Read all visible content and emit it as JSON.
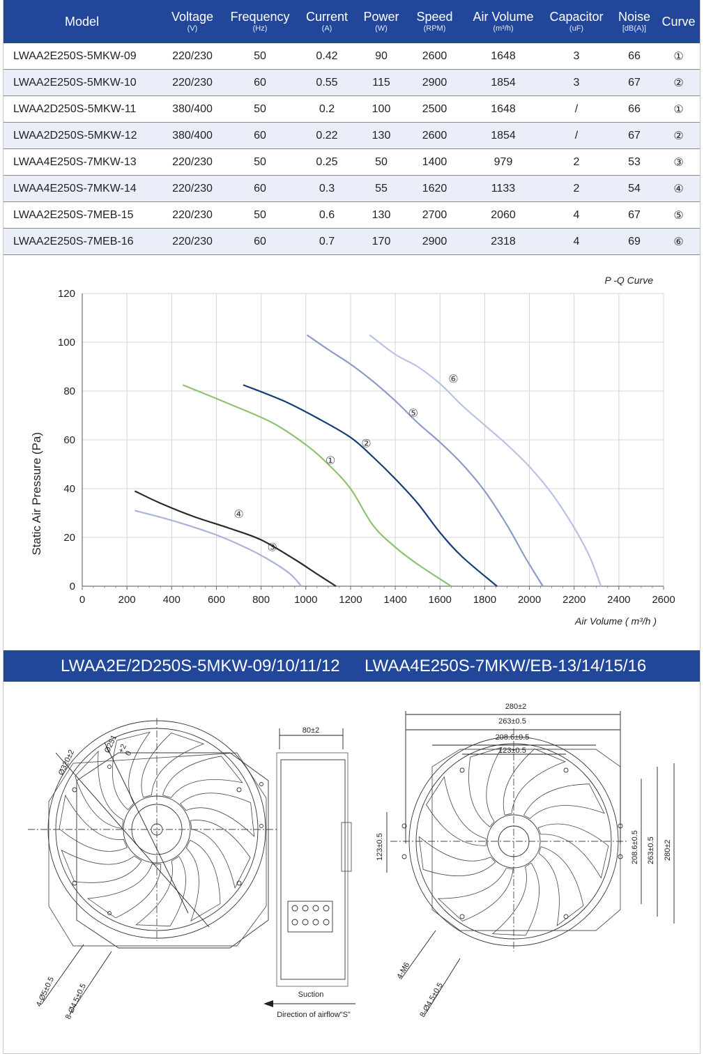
{
  "table": {
    "headers": [
      {
        "title": "Model",
        "unit": ""
      },
      {
        "title": "Voltage",
        "unit": "(V)"
      },
      {
        "title": "Frequency",
        "unit": "(Hz)"
      },
      {
        "title": "Current",
        "unit": "(A)"
      },
      {
        "title": "Power",
        "unit": "(W)"
      },
      {
        "title": "Speed",
        "unit": "(RPM)"
      },
      {
        "title": "Air Volume",
        "unit": "(m³/h)"
      },
      {
        "title": "Capacitor",
        "unit": "(uF)"
      },
      {
        "title": "Noise",
        "unit": "[dB(A)]"
      },
      {
        "title": "Curve",
        "unit": ""
      }
    ],
    "rows": [
      [
        "LWAA2E250S-5MKW-09",
        "220/230",
        "50",
        "0.42",
        "90",
        "2600",
        "1648",
        "3",
        "66",
        "①"
      ],
      [
        "LWAA2E250S-5MKW-10",
        "220/230",
        "60",
        "0.55",
        "115",
        "2900",
        "1854",
        "3",
        "67",
        "②"
      ],
      [
        "LWAA2D250S-5MKW-11",
        "380/400",
        "50",
        "0.2",
        "100",
        "2500",
        "1648",
        "/",
        "66",
        "①"
      ],
      [
        "LWAA2D250S-5MKW-12",
        "380/400",
        "60",
        "0.22",
        "130",
        "2600",
        "1854",
        "/",
        "67",
        "②"
      ],
      [
        "LWAA4E250S-7MKW-13",
        "220/230",
        "50",
        "0.25",
        "50",
        "1400",
        "979",
        "2",
        "53",
        "③"
      ],
      [
        "LWAA4E250S-7MKW-14",
        "220/230",
        "60",
        "0.3",
        "55",
        "1620",
        "1133",
        "2",
        "54",
        "④"
      ],
      [
        "LWAA2E250S-7MEB-15",
        "220/230",
        "50",
        "0.6",
        "130",
        "2700",
        "2060",
        "4",
        "67",
        "⑤"
      ],
      [
        "LWAA2E250S-7MEB-16",
        "220/230",
        "60",
        "0.7",
        "170",
        "2900",
        "2318",
        "4",
        "69",
        "⑥"
      ]
    ]
  },
  "chart_data": {
    "type": "line",
    "title": "P -Q Curve",
    "xlabel": "Air Volume ( m³/h )",
    "ylabel": "Static Air Pressure  (Pa)",
    "xlim": [
      0,
      2600
    ],
    "ylim": [
      0,
      120
    ],
    "xticks": [
      0,
      200,
      400,
      600,
      800,
      1000,
      1200,
      1400,
      1600,
      1800,
      2000,
      2200,
      2400,
      2600
    ],
    "yticks": [
      0,
      20,
      40,
      60,
      80,
      100,
      120
    ],
    "grid": true,
    "series": [
      {
        "name": "①",
        "color": "#8fc16f",
        "label_at": [
          1110,
          50
        ],
        "x": [
          450,
          650,
          850,
          1000,
          1100,
          1200,
          1300,
          1400,
          1500,
          1650
        ],
        "y": [
          82.5,
          75,
          67,
          58,
          50,
          40,
          25,
          16,
          9,
          0
        ]
      },
      {
        "name": "②",
        "color": "#153b7a",
        "label_at": [
          1270,
          57
        ],
        "x": [
          720,
          900,
          1050,
          1200,
          1300,
          1400,
          1500,
          1600,
          1700,
          1855
        ],
        "y": [
          82.5,
          76,
          69,
          61,
          53,
          44,
          34,
          22,
          12,
          0
        ]
      },
      {
        "name": "③",
        "color": "#aab4d8",
        "label_at": [
          850,
          14.5
        ],
        "x": [
          235,
          400,
          600,
          750,
          850,
          930,
          980
        ],
        "y": [
          31,
          27,
          21,
          15,
          10,
          5,
          0
        ]
      },
      {
        "name": "④",
        "color": "#2a2a2a",
        "label_at": [
          700,
          28
        ],
        "x": [
          235,
          350,
          500,
          650,
          800,
          950,
          1050,
          1135
        ],
        "y": [
          39,
          34,
          28.5,
          24,
          19,
          11,
          5,
          0
        ]
      },
      {
        "name": "⑤",
        "color": "#8a9cc6",
        "label_at": [
          1480,
          69.5
        ],
        "x": [
          1005,
          1100,
          1200,
          1300,
          1400,
          1500,
          1600,
          1700,
          1800,
          1900,
          1980,
          2060
        ],
        "y": [
          103,
          97,
          91,
          84,
          76,
          67,
          59,
          50,
          39,
          25,
          12,
          0
        ]
      },
      {
        "name": "⑥",
        "color": "#b8c2e2",
        "label_at": [
          1660,
          83.5
        ],
        "x": [
          1285,
          1400,
          1500,
          1600,
          1700,
          1800,
          1900,
          2000,
          2100,
          2200,
          2270,
          2320
        ],
        "y": [
          103,
          95,
          90,
          83,
          74,
          66,
          58,
          49,
          38,
          24,
          12,
          0
        ]
      }
    ]
  },
  "band": {
    "left": "LWAA2E/2D250S-5MKW-09/10/11/12",
    "right": "LWAA4E250S-7MKW/EB-13/14/15/16"
  },
  "drawing_left": {
    "dia_outer": "Ø320±2",
    "dia_inner_prefix": "Ø251",
    "dia_inner_tol": "+2",
    "dia_inner_tol2": "0",
    "hole_a": "4-Ø5±0.5",
    "hole_b": "8-Ø4.5±0.5"
  },
  "drawing_side": {
    "depth": "80±2",
    "suction": "Suction",
    "airflow": "Direction of airflow\"S\""
  },
  "drawing_right": {
    "w1": "280±2",
    "w2": "263±0.5",
    "w3": "208.6±0.5",
    "w4": "123±0.5",
    "h_left": "123±0.5",
    "h1": "208.6±0.5",
    "h2": "263±0.5",
    "h3": "280±2",
    "hole_a": "4-M6",
    "hole_b": "8-Ø4.5±0.5"
  }
}
